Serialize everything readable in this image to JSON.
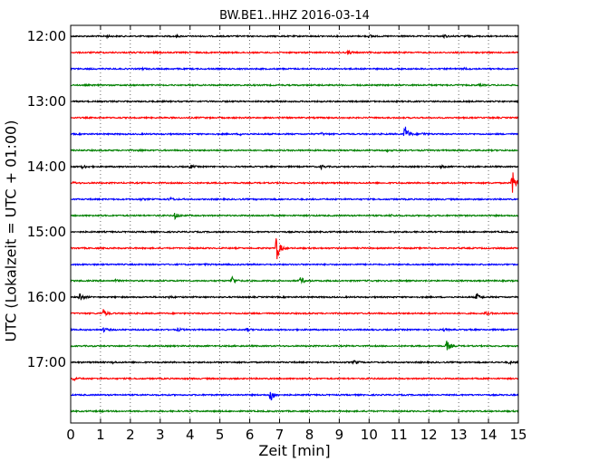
{
  "chart_data": {
    "type": "line",
    "title": "BW.BE1..HHZ 2016-03-14",
    "xlabel": "Zeit  [min]",
    "ylabel": "UTC (Lokalzeit = UTC + 01:00)",
    "xlim": [
      0,
      15
    ],
    "x_ticks": [
      "0",
      "1",
      "2",
      "3",
      "4",
      "5",
      "6",
      "7",
      "8",
      "9",
      "10",
      "11",
      "12",
      "13",
      "14",
      "15"
    ],
    "trace_interval_min": 15,
    "first_trace": "12:00",
    "y_tick_labels": [
      "12:00",
      "13:00",
      "14:00",
      "15:00",
      "16:00",
      "17:00"
    ],
    "grid": "vertical dotted",
    "colors": [
      "#000000",
      "#ff0000",
      "#0000ff",
      "#008000"
    ],
    "series": [
      {
        "start": "12:00",
        "color": "#000000",
        "events": [
          {
            "t": 1.2,
            "amp": 0.12
          },
          {
            "t": 3.5,
            "amp": 0.15
          },
          {
            "t": 10.0,
            "amp": 0.18
          },
          {
            "t": 12.5,
            "amp": 0.2
          },
          {
            "t": 13.2,
            "amp": 0.1
          }
        ]
      },
      {
        "start": "12:15",
        "color": "#ff0000",
        "events": [
          {
            "t": 9.3,
            "amp": 0.25
          },
          {
            "t": 2.8,
            "amp": 0.08
          }
        ]
      },
      {
        "start": "12:30",
        "color": "#0000ff",
        "events": [
          {
            "t": 2.4,
            "amp": 0.08
          },
          {
            "t": 13.2,
            "amp": 0.1
          }
        ]
      },
      {
        "start": "12:45",
        "color": "#008000",
        "events": [
          {
            "t": 13.7,
            "amp": 0.08
          }
        ]
      },
      {
        "start": "13:00",
        "color": "#000000",
        "events": [
          {
            "t": 6.9,
            "amp": 0.08
          }
        ]
      },
      {
        "start": "13:15",
        "color": "#ff0000",
        "events": [
          {
            "t": 4.3,
            "amp": 0.08
          }
        ]
      },
      {
        "start": "13:30",
        "color": "#0000ff",
        "events": [
          {
            "t": 11.2,
            "amp": 1.3
          },
          {
            "t": 5.7,
            "amp": 0.15
          },
          {
            "t": 8.4,
            "amp": 0.15
          },
          {
            "t": 11.8,
            "amp": 0.2
          }
        ]
      },
      {
        "start": "13:45",
        "color": "#008000",
        "events": [
          {
            "t": 2.3,
            "amp": 0.1
          },
          {
            "t": 10.6,
            "amp": 0.1
          }
        ]
      },
      {
        "start": "14:00",
        "color": "#000000",
        "events": [
          {
            "t": 0.4,
            "amp": 0.3
          },
          {
            "t": 4.0,
            "amp": 0.28
          },
          {
            "t": 8.4,
            "amp": 0.25
          },
          {
            "t": 12.4,
            "amp": 0.22
          }
        ]
      },
      {
        "start": "14:15",
        "color": "#ff0000",
        "events": [
          {
            "t": 14.8,
            "amp": 1.7
          },
          {
            "t": 0.1,
            "amp": 0.12
          }
        ]
      },
      {
        "start": "14:30",
        "color": "#0000ff",
        "events": [
          {
            "t": 3.3,
            "amp": 0.3
          },
          {
            "t": 2.3,
            "amp": 0.1
          }
        ]
      },
      {
        "start": "14:45",
        "color": "#008000",
        "events": [
          {
            "t": 3.5,
            "amp": 0.5
          },
          {
            "t": 10.7,
            "amp": 0.12
          },
          {
            "t": 12.0,
            "amp": 0.08
          }
        ]
      },
      {
        "start": "15:00",
        "color": "#000000",
        "events": [
          {
            "t": 10.8,
            "amp": 0.08
          }
        ]
      },
      {
        "start": "15:15",
        "color": "#ff0000",
        "events": [
          {
            "t": 6.9,
            "amp": 1.9
          }
        ]
      },
      {
        "start": "15:30",
        "color": "#0000ff",
        "events": [
          {
            "t": 4.5,
            "amp": 0.05
          }
        ]
      },
      {
        "start": "15:45",
        "color": "#008000",
        "events": [
          {
            "t": 5.4,
            "amp": 0.7
          },
          {
            "t": 7.7,
            "amp": 0.6
          },
          {
            "t": 1.5,
            "amp": 0.15
          }
        ]
      },
      {
        "start": "16:00",
        "color": "#000000",
        "events": [
          {
            "t": 0.3,
            "amp": 0.6
          },
          {
            "t": 13.6,
            "amp": 0.55
          },
          {
            "t": 3.3,
            "amp": 0.12
          }
        ]
      },
      {
        "start": "16:15",
        "color": "#ff0000",
        "events": [
          {
            "t": 1.1,
            "amp": 0.55
          },
          {
            "t": 13.9,
            "amp": 0.25
          }
        ]
      },
      {
        "start": "16:30",
        "color": "#0000ff",
        "events": [
          {
            "t": 1.1,
            "amp": 0.3
          },
          {
            "t": 3.6,
            "amp": 0.2
          },
          {
            "t": 5.9,
            "amp": 0.2
          },
          {
            "t": 12.5,
            "amp": 0.15
          }
        ]
      },
      {
        "start": "16:45",
        "color": "#008000",
        "events": [
          {
            "t": 12.6,
            "amp": 0.8
          }
        ]
      },
      {
        "start": "17:00",
        "color": "#000000",
        "events": [
          {
            "t": 9.5,
            "amp": 0.3
          },
          {
            "t": 1.4,
            "amp": 0.12
          },
          {
            "t": 14.7,
            "amp": 0.15
          }
        ]
      },
      {
        "start": "17:15",
        "color": "#ff0000",
        "events": [
          {
            "t": 0.1,
            "amp": 0.25
          }
        ]
      },
      {
        "start": "17:30",
        "color": "#0000ff",
        "events": [
          {
            "t": 6.7,
            "amp": 1.0
          }
        ]
      },
      {
        "start": "17:45",
        "color": "#008000",
        "events": [
          {
            "t": 1.0,
            "amp": 0.06
          }
        ]
      }
    ]
  }
}
